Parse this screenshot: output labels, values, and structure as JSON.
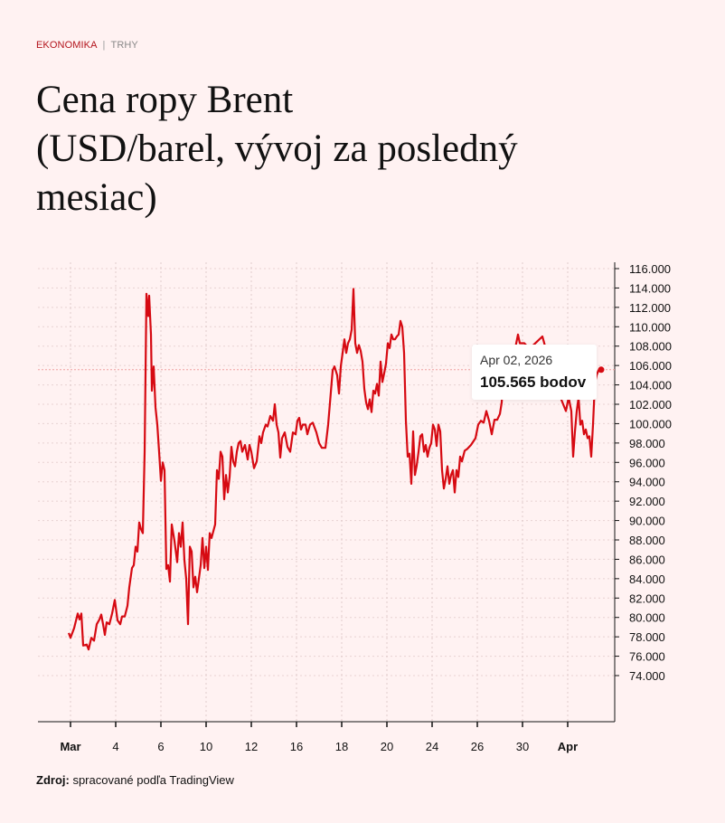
{
  "header": {
    "section": "EKONOMIKA",
    "separator": "|",
    "subsection": "TRHY"
  },
  "title_lines": [
    "Cena ropy Brent",
    "(USD/barel, vývoj za posledný",
    "mesiac)"
  ],
  "source": {
    "label": "Zdroj:",
    "text": "spracované podľa TradingView"
  },
  "tooltip": {
    "date": "Apr 02, 2026",
    "value": "105.565 bodov",
    "value_num": 105.565,
    "x_index": 23.48
  },
  "colors": {
    "line": "#d60a12",
    "accent": "#b3141c",
    "background": "#fff2f2"
  },
  "chart_data": {
    "type": "line",
    "title": "Cena ropy Brent (USD/barel, vývoj za posledný mesiac)",
    "xlabel": "",
    "ylabel": "USD/barel",
    "x_unit": "trading-day index (0 = Mar 2)",
    "ylim": [
      70,
      116.5
    ],
    "xlim": [
      -1.5,
      24.2
    ],
    "x_ticks": [
      {
        "t": 0,
        "label": "Mar"
      },
      {
        "t": 2,
        "label": "4"
      },
      {
        "t": 4,
        "label": "6"
      },
      {
        "t": 6,
        "label": "10"
      },
      {
        "t": 8,
        "label": "12"
      },
      {
        "t": 10,
        "label": "16"
      },
      {
        "t": 12,
        "label": "18"
      },
      {
        "t": 14,
        "label": "20"
      },
      {
        "t": 16,
        "label": "24"
      },
      {
        "t": 18,
        "label": "26"
      },
      {
        "t": 20,
        "label": "30"
      },
      {
        "t": 22,
        "label": "Apr"
      }
    ],
    "y_ticks": [
      {
        "v": 116,
        "label": "116.000"
      },
      {
        "v": 114,
        "label": "114.000"
      },
      {
        "v": 112,
        "label": "112.000"
      },
      {
        "v": 110,
        "label": "110.000"
      },
      {
        "v": 108,
        "label": "108.000"
      },
      {
        "v": 106,
        "label": "106.000"
      },
      {
        "v": 104,
        "label": "104.000"
      },
      {
        "v": 102,
        "label": "102.000"
      },
      {
        "v": 100,
        "label": "100.000"
      },
      {
        "v": 98,
        "label": "98.000"
      },
      {
        "v": 96,
        "label": "96.000"
      },
      {
        "v": 94,
        "label": "94.000"
      },
      {
        "v": 92,
        "label": "92.000"
      },
      {
        "v": 90,
        "label": "90.000"
      },
      {
        "v": 88,
        "label": "88.000"
      },
      {
        "v": 86,
        "label": "86.000"
      },
      {
        "v": 84,
        "label": "84.000"
      },
      {
        "v": 82,
        "label": "82.000"
      },
      {
        "v": 80,
        "label": "80.000"
      },
      {
        "v": 78,
        "label": "78.000"
      },
      {
        "v": 76,
        "label": "76.000"
      },
      {
        "v": 74,
        "label": "74.000"
      }
    ],
    "grid": true,
    "series": [
      {
        "name": "Brent",
        "points": [
          [
            -0.08,
            78.4
          ],
          [
            0,
            77.9
          ],
          [
            0.16,
            78.9
          ],
          [
            0.32,
            80.4
          ],
          [
            0.4,
            79.8
          ],
          [
            0.48,
            80.4
          ],
          [
            0.56,
            77.1
          ],
          [
            0.72,
            77.2
          ],
          [
            0.8,
            76.7
          ],
          [
            0.92,
            77.9
          ],
          [
            1.04,
            77.6
          ],
          [
            1.16,
            79.3
          ],
          [
            1.28,
            79.8
          ],
          [
            1.36,
            80.3
          ],
          [
            1.44,
            79.3
          ],
          [
            1.52,
            78.2
          ],
          [
            1.6,
            79.5
          ],
          [
            1.72,
            79.3
          ],
          [
            1.84,
            80.4
          ],
          [
            1.96,
            81.8
          ],
          [
            2.08,
            79.7
          ],
          [
            2.2,
            79.3
          ],
          [
            2.28,
            80.1
          ],
          [
            2.4,
            80.1
          ],
          [
            2.52,
            81.2
          ],
          [
            2.6,
            83.1
          ],
          [
            2.72,
            85.1
          ],
          [
            2.8,
            85.4
          ],
          [
            2.88,
            87.3
          ],
          [
            2.96,
            86.8
          ],
          [
            3.04,
            89.8
          ],
          [
            3.12,
            89.1
          ],
          [
            3.2,
            88.7
          ],
          [
            3.28,
            97.1
          ],
          [
            3.36,
            113.4
          ],
          [
            3.44,
            111.1
          ],
          [
            3.48,
            113.2
          ],
          [
            3.56,
            109.2
          ],
          [
            3.6,
            103.4
          ],
          [
            3.68,
            105.9
          ],
          [
            3.76,
            101.7
          ],
          [
            3.84,
            99.9
          ],
          [
            3.92,
            97.1
          ],
          [
            4,
            94.1
          ],
          [
            4.08,
            96
          ],
          [
            4.16,
            95.2
          ],
          [
            4.24,
            85
          ],
          [
            4.32,
            85.4
          ],
          [
            4.4,
            83.7
          ],
          [
            4.48,
            89.6
          ],
          [
            4.6,
            87.9
          ],
          [
            4.72,
            85.7
          ],
          [
            4.8,
            88.7
          ],
          [
            4.88,
            87.3
          ],
          [
            4.96,
            89.8
          ],
          [
            5.04,
            85.9
          ],
          [
            5.12,
            84
          ],
          [
            5.2,
            79.3
          ],
          [
            5.28,
            87.3
          ],
          [
            5.36,
            86.8
          ],
          [
            5.44,
            83.1
          ],
          [
            5.52,
            84.2
          ],
          [
            5.6,
            82.6
          ],
          [
            5.68,
            84
          ],
          [
            5.76,
            85.4
          ],
          [
            5.84,
            88.2
          ],
          [
            5.92,
            85.1
          ],
          [
            6,
            87.3
          ],
          [
            6.08,
            84.9
          ],
          [
            6.16,
            88.7
          ],
          [
            6.24,
            88.2
          ],
          [
            6.32,
            88.9
          ],
          [
            6.4,
            89.6
          ],
          [
            6.48,
            95.2
          ],
          [
            6.56,
            94.3
          ],
          [
            6.64,
            97.1
          ],
          [
            6.72,
            96.6
          ],
          [
            6.8,
            92.2
          ],
          [
            6.88,
            94.7
          ],
          [
            6.96,
            92.9
          ],
          [
            7.04,
            94.5
          ],
          [
            7.12,
            97.6
          ],
          [
            7.2,
            96.1
          ],
          [
            7.28,
            95.6
          ],
          [
            7.36,
            97.1
          ],
          [
            7.44,
            98
          ],
          [
            7.52,
            98.2
          ],
          [
            7.6,
            97.1
          ],
          [
            7.72,
            97.8
          ],
          [
            7.84,
            96.3
          ],
          [
            7.92,
            97.8
          ],
          [
            8,
            97.1
          ],
          [
            8.12,
            95.4
          ],
          [
            8.24,
            96.1
          ],
          [
            8.36,
            98.7
          ],
          [
            8.44,
            98
          ],
          [
            8.52,
            99.1
          ],
          [
            8.64,
            99.9
          ],
          [
            8.72,
            99.7
          ],
          [
            8.84,
            100.8
          ],
          [
            8.96,
            100.3
          ],
          [
            9.04,
            102
          ],
          [
            9.12,
            99.9
          ],
          [
            9.2,
            99.1
          ],
          [
            9.28,
            96.5
          ],
          [
            9.36,
            98.5
          ],
          [
            9.48,
            99.1
          ],
          [
            9.6,
            97.6
          ],
          [
            9.72,
            97.1
          ],
          [
            9.84,
            99.1
          ],
          [
            9.96,
            98.9
          ],
          [
            10.04,
            100.3
          ],
          [
            10.12,
            100.6
          ],
          [
            10.2,
            99.4
          ],
          [
            10.28,
            99.9
          ],
          [
            10.4,
            99.9
          ],
          [
            10.48,
            98.9
          ],
          [
            10.6,
            99.9
          ],
          [
            10.72,
            100.1
          ],
          [
            10.88,
            99.1
          ],
          [
            11,
            98
          ],
          [
            11.12,
            97.5
          ],
          [
            11.28,
            97.5
          ],
          [
            11.4,
            99.9
          ],
          [
            11.6,
            105.5
          ],
          [
            11.68,
            105.9
          ],
          [
            11.8,
            105
          ],
          [
            11.88,
            103.1
          ],
          [
            11.96,
            105.9
          ],
          [
            12.04,
            107.3
          ],
          [
            12.12,
            108.7
          ],
          [
            12.2,
            107.3
          ],
          [
            12.28,
            108.3
          ],
          [
            12.36,
            108.7
          ],
          [
            12.44,
            109.7
          ],
          [
            12.52,
            113.9
          ],
          [
            12.6,
            108.3
          ],
          [
            12.68,
            107.3
          ],
          [
            12.76,
            108.1
          ],
          [
            12.84,
            107.5
          ],
          [
            12.92,
            106.4
          ],
          [
            13,
            103.6
          ],
          [
            13.08,
            102.2
          ],
          [
            13.16,
            101.5
          ],
          [
            13.24,
            102.5
          ],
          [
            13.32,
            101.2
          ],
          [
            13.4,
            103.4
          ],
          [
            13.48,
            103.1
          ],
          [
            13.56,
            104.1
          ],
          [
            13.64,
            102.9
          ],
          [
            13.72,
            106.4
          ],
          [
            13.8,
            104.3
          ],
          [
            13.88,
            105.2
          ],
          [
            13.96,
            106.2
          ],
          [
            14.04,
            108.3
          ],
          [
            14.12,
            107.8
          ],
          [
            14.2,
            109.2
          ],
          [
            14.28,
            108.7
          ],
          [
            14.36,
            108.7
          ],
          [
            14.44,
            109
          ],
          [
            14.52,
            109.2
          ],
          [
            14.6,
            110.6
          ],
          [
            14.68,
            110
          ],
          [
            14.76,
            107.3
          ],
          [
            14.84,
            100.3
          ],
          [
            14.92,
            96.6
          ],
          [
            15,
            96.9
          ],
          [
            15.08,
            93.8
          ],
          [
            15.16,
            99.2
          ],
          [
            15.24,
            94.7
          ],
          [
            15.32,
            95.7
          ],
          [
            15.4,
            97.1
          ],
          [
            15.48,
            98.7
          ],
          [
            15.56,
            98.9
          ],
          [
            15.64,
            97.1
          ],
          [
            15.72,
            97.8
          ],
          [
            15.8,
            96.6
          ],
          [
            15.88,
            97.5
          ],
          [
            15.96,
            98
          ],
          [
            16.04,
            99.9
          ],
          [
            16.12,
            99.4
          ],
          [
            16.2,
            97.7
          ],
          [
            16.28,
            99.9
          ],
          [
            16.36,
            99.2
          ],
          [
            16.44,
            95.2
          ],
          [
            16.52,
            93.3
          ],
          [
            16.6,
            94.3
          ],
          [
            16.68,
            95.6
          ],
          [
            16.76,
            93.8
          ],
          [
            16.84,
            94.7
          ],
          [
            16.92,
            95.2
          ],
          [
            17,
            92.9
          ],
          [
            17.08,
            95.2
          ],
          [
            17.16,
            94.5
          ],
          [
            17.24,
            96.6
          ],
          [
            17.32,
            96.1
          ],
          [
            17.44,
            97.2
          ],
          [
            17.56,
            97.4
          ],
          [
            17.72,
            97.8
          ],
          [
            17.92,
            98.5
          ],
          [
            18.04,
            99.9
          ],
          [
            18.16,
            100.3
          ],
          [
            18.28,
            100.1
          ],
          [
            18.4,
            101.3
          ],
          [
            18.52,
            100.3
          ],
          [
            18.64,
            98.9
          ],
          [
            18.76,
            100.4
          ],
          [
            18.88,
            100.4
          ],
          [
            19,
            101
          ],
          [
            19.08,
            102.2
          ],
          [
            19.16,
            105.5
          ],
          [
            19.68,
            107.8
          ],
          [
            19.8,
            109.2
          ],
          [
            19.88,
            108.3
          ],
          [
            20.08,
            108.3
          ],
          [
            20.28,
            107.8
          ],
          [
            20.48,
            108.1
          ],
          [
            20.88,
            109
          ],
          [
            21.08,
            107.3
          ],
          [
            21.4,
            104.5
          ],
          [
            21.68,
            102.7
          ],
          [
            21.92,
            101.3
          ],
          [
            22.04,
            102.7
          ],
          [
            22.16,
            101.3
          ],
          [
            22.24,
            96.6
          ],
          [
            22.32,
            99.2
          ],
          [
            22.4,
            101.3
          ],
          [
            22.48,
            102.7
          ],
          [
            22.56,
            99.9
          ],
          [
            22.64,
            100.3
          ],
          [
            22.72,
            98.9
          ],
          [
            22.8,
            99.4
          ],
          [
            22.88,
            98.5
          ],
          [
            22.96,
            98.7
          ],
          [
            23.04,
            96.6
          ],
          [
            23.12,
            99.9
          ],
          [
            23.2,
            104.1
          ],
          [
            23.28,
            105
          ],
          [
            23.36,
            105.5
          ],
          [
            23.48,
            105.565
          ]
        ]
      }
    ]
  }
}
